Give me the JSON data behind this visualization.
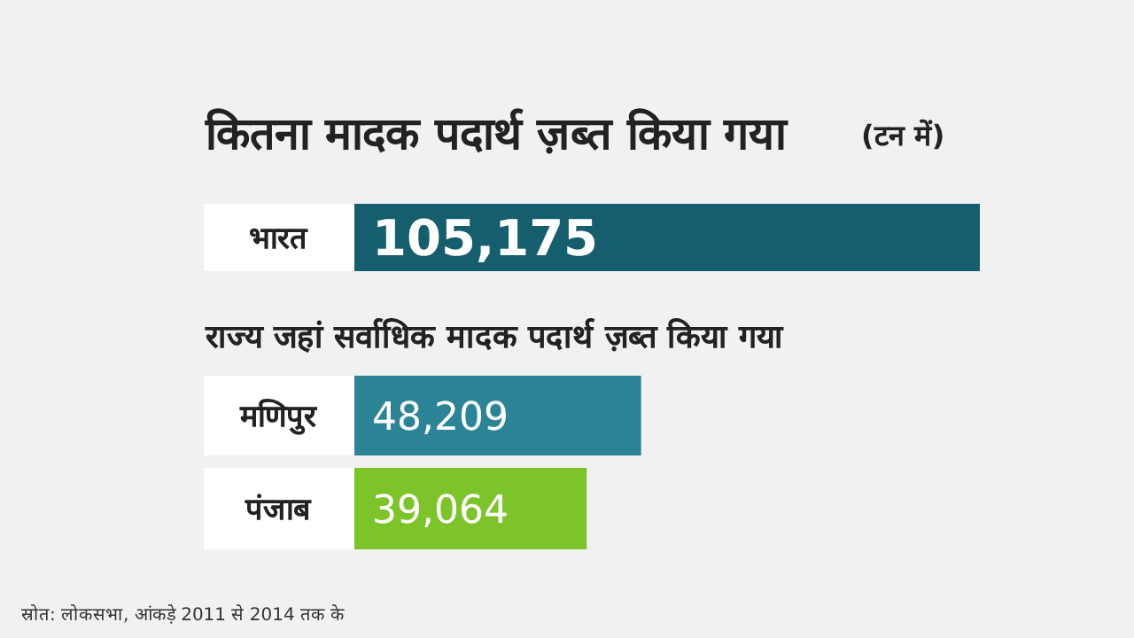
{
  "chart_data": {
    "type": "bar",
    "orientation": "horizontal",
    "data_labels": true,
    "title": "कितना मादक पदार्थ ज़ब्त किया गया",
    "subtitle": "राज्य जहां सर्वाधिक मादक पदार्थ ज़ब्त किया गया",
    "annotations": [
      "(टन में)",
      "स्रोत: लोकसभा, आंकड़े 2011 से 2014 तक के"
    ],
    "categories": [
      "भारत",
      "मणिपुर",
      "पंजाब"
    ],
    "values": [
      105175,
      48209,
      39064
    ],
    "value_labels": [
      "105,175",
      "48,209",
      "39,064"
    ],
    "colors": [
      "#155e6d",
      "#2a8496",
      "#7cc42a"
    ]
  }
}
